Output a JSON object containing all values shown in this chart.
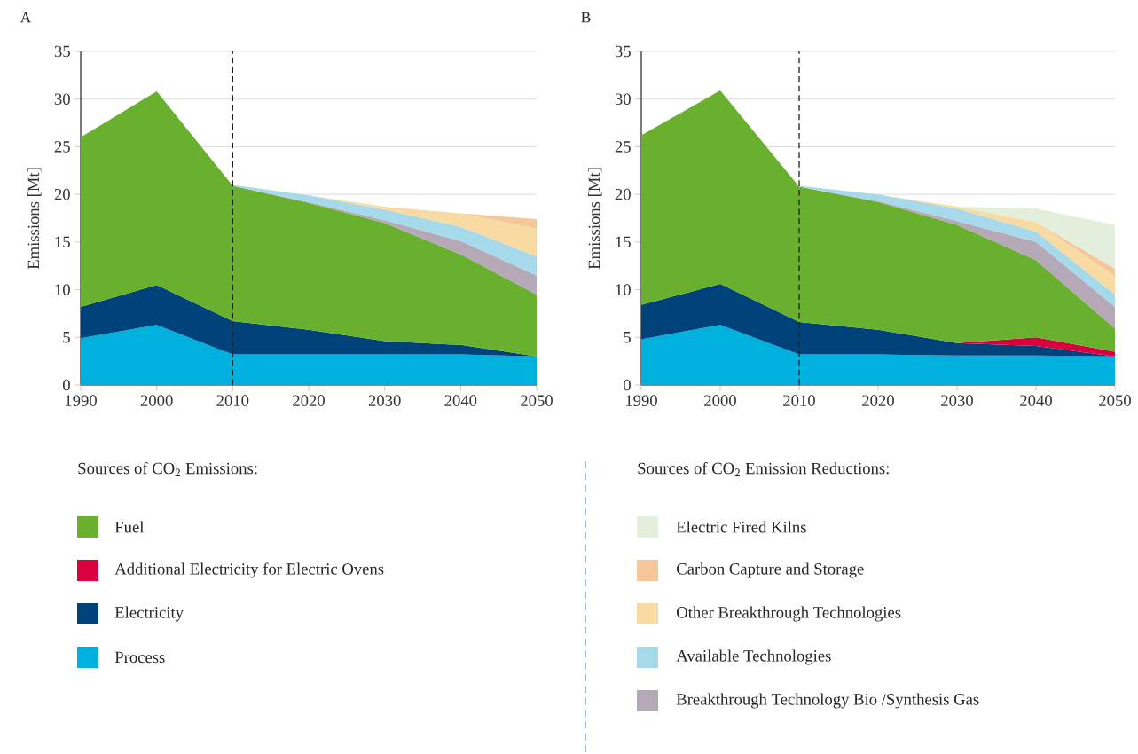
{
  "chart_data": [
    {
      "type": "area",
      "title": "A",
      "ylabel": "Emissions [Mt]",
      "legend_title": "Sources of CO$_{2}$ Emissions:",
      "stacked": true,
      "x": [
        1990,
        2000,
        2010,
        2020,
        2030,
        2040,
        2050
      ],
      "xlim": [
        1990,
        2050
      ],
      "ylim": [
        0,
        35
      ],
      "xticks": [
        1990,
        2000,
        2010,
        2020,
        2030,
        2040,
        2050
      ],
      "yticks": [
        0,
        5,
        10,
        15,
        20,
        25,
        30,
        35
      ],
      "grid": "y",
      "legend": "bottom",
      "ref_lines": [
        {
          "axis": "x",
          "value": 2010,
          "color": "#222222",
          "line_style": "dashed"
        }
      ],
      "series": [
        {
          "name": "Process",
          "color": "#00b0dd",
          "values": [
            4.9,
            6.3,
            3.2,
            3.2,
            3.2,
            3.2,
            3.0
          ]
        },
        {
          "name": "Electricity",
          "color": "#00427a",
          "values": [
            3.3,
            4.2,
            3.5,
            2.6,
            1.4,
            1.0,
            0
          ]
        },
        {
          "name": "Fuel",
          "color": "#6ab02f",
          "values": [
            17.8,
            20.3,
            14.2,
            13.3,
            12.4,
            9.5,
            6.5
          ]
        },
        {
          "color": "#b5a9b8",
          "values": [
            null,
            null,
            0,
            0.1,
            0.3,
            1.4,
            2.0
          ]
        },
        {
          "color": "#a6d9ea",
          "values": [
            null,
            null,
            0.1,
            0.7,
            1.1,
            1.5,
            2.0
          ]
        },
        {
          "color": "#f8dba3",
          "values": [
            null,
            null,
            null,
            0,
            0.3,
            1.4,
            2.9
          ]
        },
        {
          "color": "#f5c79a",
          "values": [
            null,
            null,
            null,
            null,
            null,
            0,
            1.0
          ]
        }
      ]
    },
    {
      "type": "area",
      "title": "B",
      "ylabel": "Emissions [Mt]",
      "legend_title": "Sources of CO$_{2}$ Emission Reductions:",
      "stacked": true,
      "x": [
        1990,
        2000,
        2010,
        2020,
        2030,
        2040,
        2050
      ],
      "xlim": [
        1990,
        2050
      ],
      "ylim": [
        0,
        35
      ],
      "xticks": [
        1990,
        2000,
        2010,
        2020,
        2030,
        2040,
        2050
      ],
      "yticks": [
        0,
        5,
        10,
        15,
        20,
        25,
        30,
        35
      ],
      "grid": "y",
      "legend": "bottom",
      "ref_lines": [
        {
          "axis": "x",
          "value": 2010,
          "color": "#222222",
          "line_style": "dashed"
        }
      ],
      "series": [
        {
          "color": "#00b0dd",
          "values": [
            4.8,
            6.3,
            3.2,
            3.2,
            3.1,
            3.1,
            3.0
          ]
        },
        {
          "color": "#00427a",
          "values": [
            3.6,
            4.3,
            3.4,
            2.6,
            1.3,
            1.0,
            0
          ]
        },
        {
          "name": "Additional Electricity for Electric Ovens",
          "color": "#d9003f",
          "values": [
            null,
            null,
            null,
            null,
            0,
            0.9,
            0.5
          ]
        },
        {
          "color": "#6ab02f",
          "values": [
            17.8,
            20.3,
            14.2,
            13.4,
            12.4,
            8.1,
            2.4
          ]
        },
        {
          "name": "Breakthrough Technology Bio /Synthesis Gas",
          "color": "#b5a9b8",
          "values": [
            null,
            null,
            0,
            0.1,
            0.4,
            1.9,
            2.3
          ]
        },
        {
          "name": "Available Technologies",
          "color": "#a6d9ea",
          "values": [
            null,
            null,
            0.1,
            0.7,
            1.3,
            1.1,
            1.3
          ]
        },
        {
          "name": "Other Breakthrough Technologies",
          "color": "#f8dba3",
          "values": [
            null,
            null,
            null,
            0,
            0.2,
            1.0,
            1.9
          ]
        },
        {
          "name": "Carbon Capture and Storage",
          "color": "#f5c79a",
          "values": [
            null,
            null,
            null,
            null,
            null,
            0,
            0.8
          ]
        },
        {
          "name": "Electric Fired Kilns",
          "color": "#e3eedb",
          "values": [
            null,
            null,
            null,
            null,
            0,
            1.4,
            4.6
          ]
        }
      ]
    }
  ]
}
